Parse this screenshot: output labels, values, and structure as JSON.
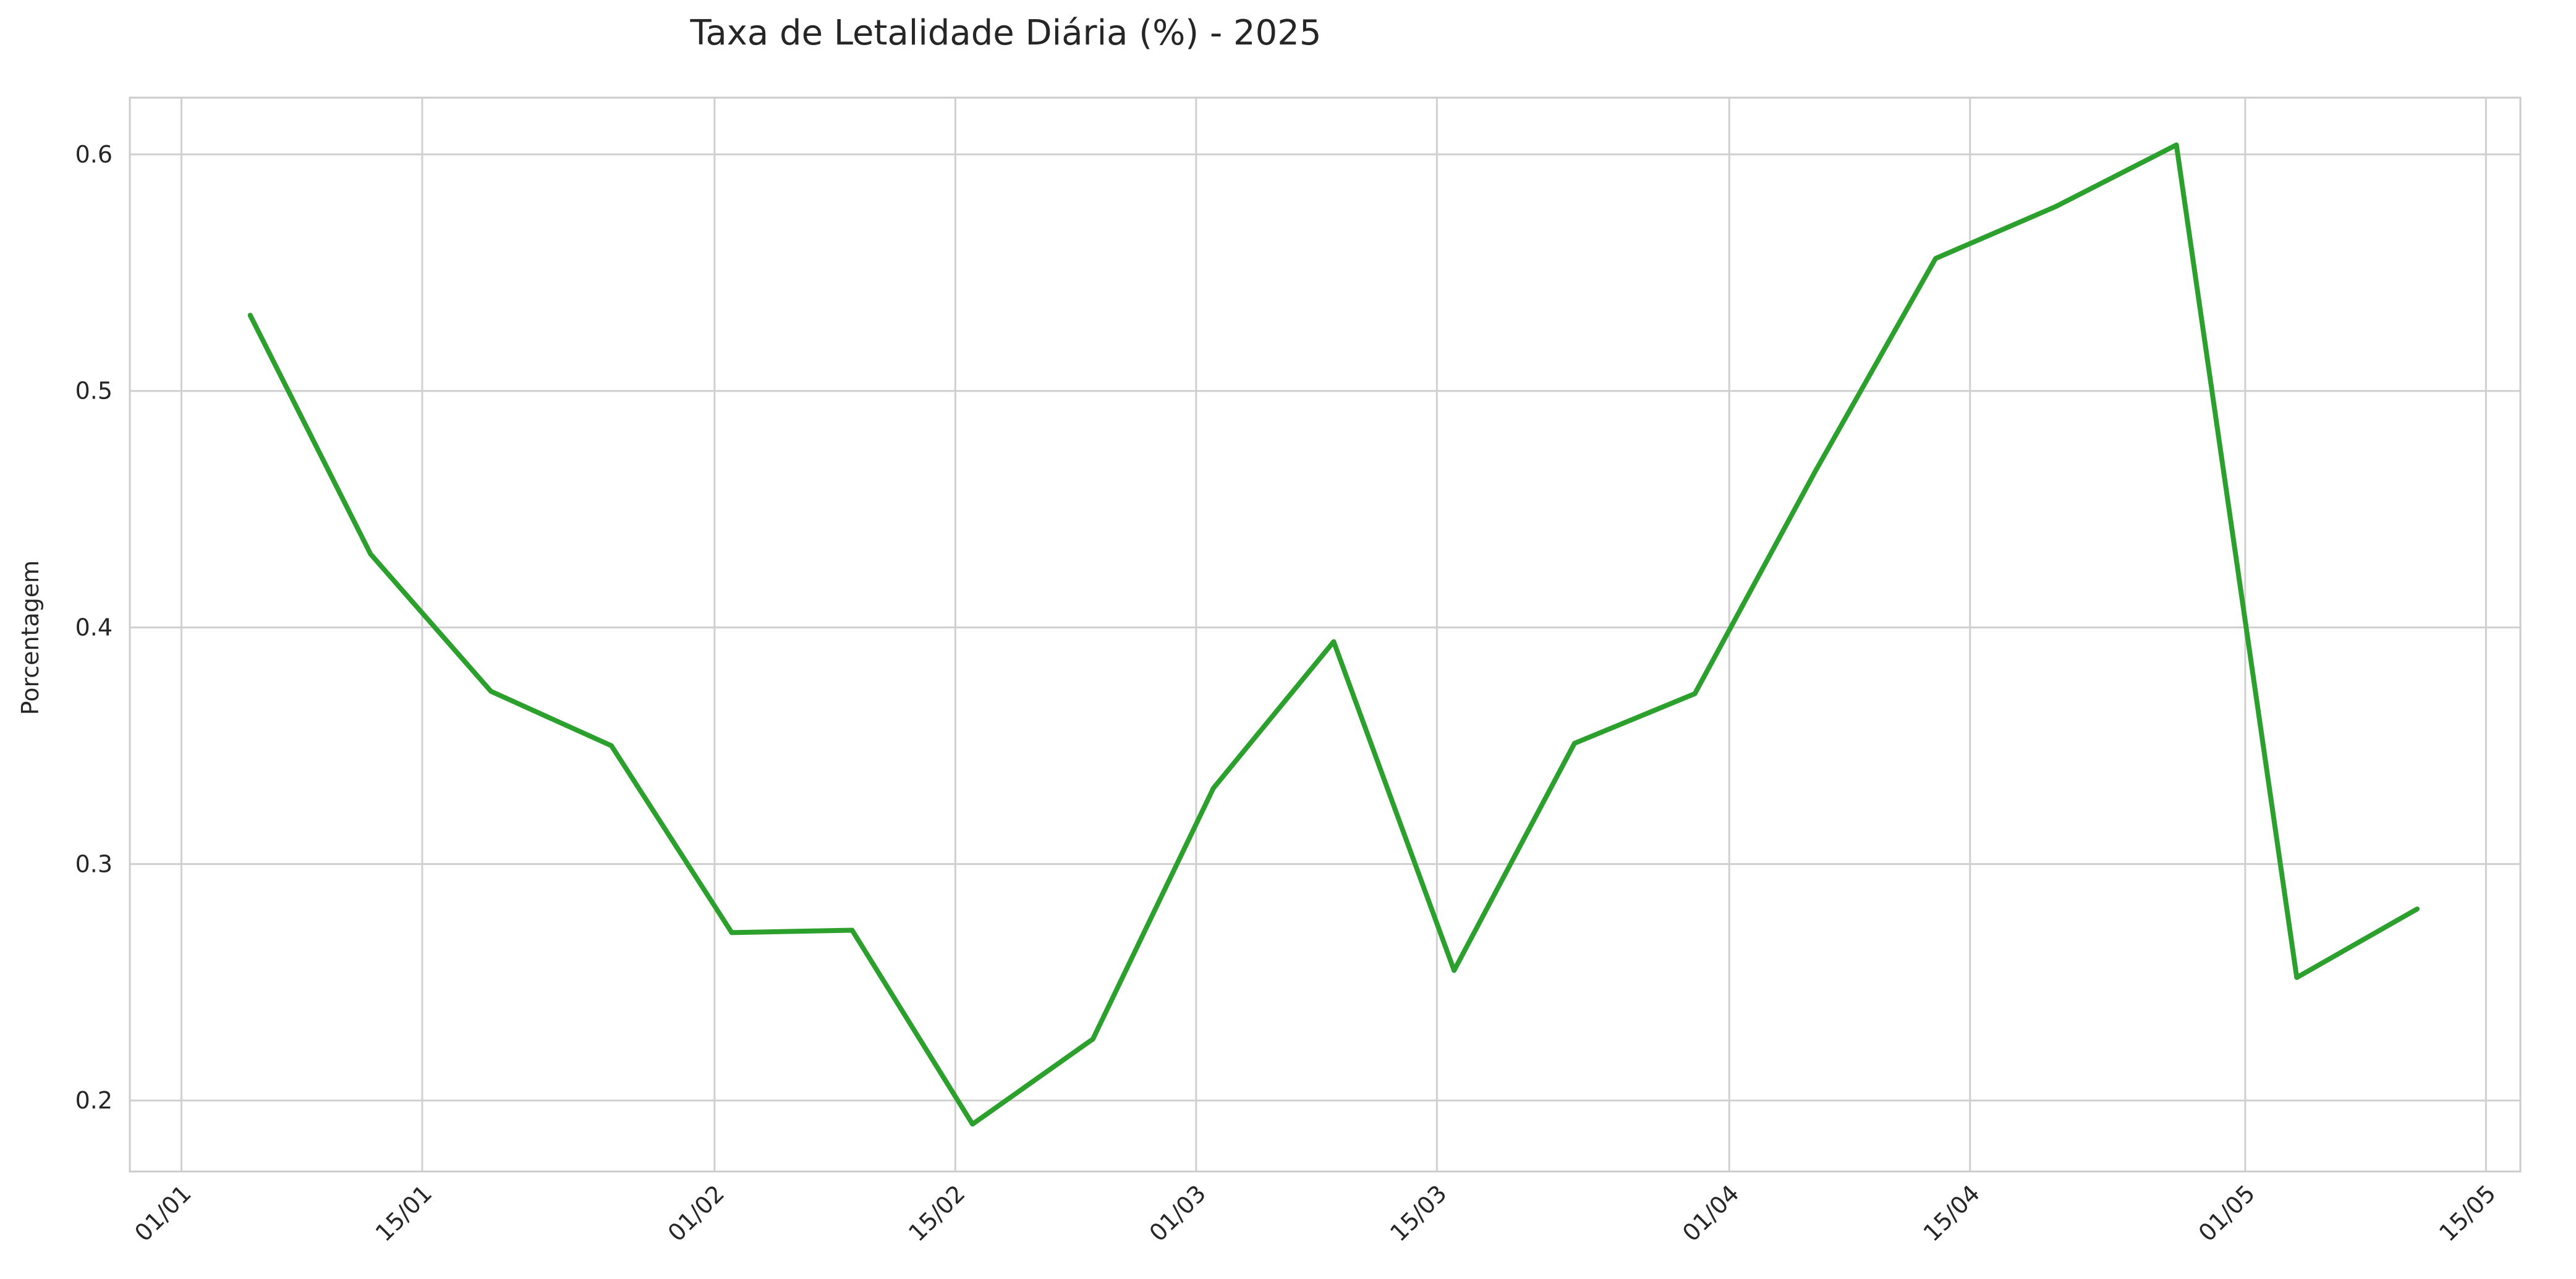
{
  "chart_data": {
    "type": "line",
    "title": "Taxa de Letalidade Diária (%) - 2025",
    "xlabel": "",
    "ylabel": "Porcentagem",
    "x_tick_labels": [
      "01/01",
      "15/01",
      "01/02",
      "15/02",
      "01/03",
      "15/03",
      "01/04",
      "15/04",
      "01/05",
      "15/05"
    ],
    "x_tick_dates": [
      "2025-01-01",
      "2025-01-15",
      "2025-02-01",
      "2025-02-15",
      "2025-03-01",
      "2025-03-15",
      "2025-04-01",
      "2025-04-15",
      "2025-05-01",
      "2025-05-15"
    ],
    "y_ticks": [
      0.2,
      0.3,
      0.4,
      0.5,
      0.6
    ],
    "xlim": [
      "2024-12-29",
      "2025-05-17"
    ],
    "ylim": [
      0.17,
      0.624
    ],
    "grid": true,
    "series": [
      {
        "color": "#2ca02c",
        "x": [
          "2025-01-05",
          "2025-01-12",
          "2025-01-19",
          "2025-01-26",
          "2025-02-02",
          "2025-02-09",
          "2025-02-16",
          "2025-02-23",
          "2025-03-02",
          "2025-03-09",
          "2025-03-16",
          "2025-03-23",
          "2025-03-30",
          "2025-04-06",
          "2025-04-13",
          "2025-04-20",
          "2025-04-27",
          "2025-05-04",
          "2025-05-11"
        ],
        "values": [
          0.532,
          0.431,
          0.373,
          0.35,
          0.271,
          0.272,
          0.19,
          0.226,
          0.332,
          0.394,
          0.255,
          0.351,
          0.372,
          0.466,
          0.556,
          0.578,
          0.604,
          0.252,
          0.281
        ]
      }
    ]
  }
}
